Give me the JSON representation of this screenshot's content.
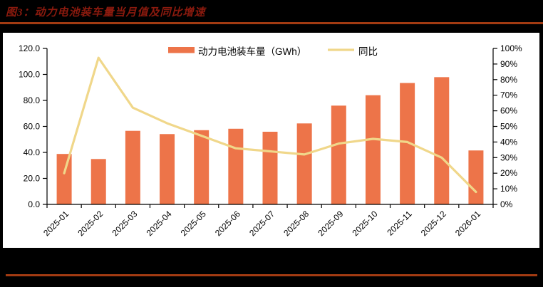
{
  "page": {
    "background_color": "#000000",
    "panel_background_color": "#FFFFFF"
  },
  "header": {
    "title": "图3：动力电池装车量当月值及同比增速",
    "title_color": "#8B1A0E",
    "rule_color": "#A33B12"
  },
  "chart_data": {
    "type": "bar",
    "title": "图3：动力电池装车量当月值及同比增速",
    "categories": [
      "2025-01",
      "2025-02",
      "2025-03",
      "2025-04",
      "2025-05",
      "2025-06",
      "2025-07",
      "2025-08",
      "2025-09",
      "2025-10",
      "2025-11",
      "2025-12",
      "2026-01"
    ],
    "series": [
      {
        "name": "动力电池装车量（GWh）",
        "type": "bar",
        "axis": "left",
        "color": "#ED7449",
        "values": [
          38.8,
          34.9,
          56.6,
          54.1,
          57.1,
          58.2,
          55.9,
          62.3,
          76.0,
          84.0,
          93.4,
          97.9,
          41.5
        ]
      },
      {
        "name": "同比",
        "type": "line",
        "axis": "right",
        "color": "#F0D78A",
        "values": [
          20,
          94,
          62,
          52,
          44,
          36,
          34,
          32,
          39,
          42,
          40,
          30,
          8
        ]
      }
    ],
    "left_axis": {
      "min": 0,
      "max": 120,
      "step": 20,
      "tick_labels": [
        "0.0",
        "20.0",
        "40.0",
        "60.0",
        "80.0",
        "100.0",
        "120.0"
      ]
    },
    "right_axis": {
      "min": 0,
      "max": 100,
      "step": 10,
      "tick_labels": [
        "0%",
        "10%",
        "20%",
        "30%",
        "40%",
        "50%",
        "60%",
        "70%",
        "80%",
        "90%",
        "100%"
      ]
    },
    "legend_position": "top-center",
    "grid": false,
    "axis_color": "#000000"
  }
}
